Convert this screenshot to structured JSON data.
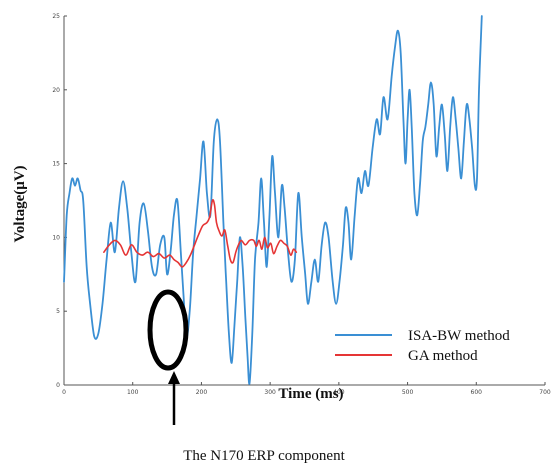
{
  "chart_data": {
    "type": "line",
    "xlabel": "Time (ms)",
    "ylabel": "Voltage(μV)",
    "xlim": [
      0,
      700
    ],
    "ylim": [
      0,
      25
    ],
    "x_ticks": [
      "0",
      "100",
      "200",
      "300",
      "400",
      "500",
      "600",
      "700"
    ],
    "y_ticks": [
      "0",
      "5",
      "10",
      "15",
      "20",
      "25"
    ],
    "grid": false,
    "legend_position": "bottom-right",
    "colors": {
      "isa": "#3a8fd4",
      "ga": "#e53535",
      "axis": "#555555",
      "annotation": "#000000"
    },
    "series": [
      {
        "name": "ISA-BW method",
        "color_key": "isa",
        "points": [
          [
            0,
            7
          ],
          [
            4,
            11.5
          ],
          [
            8,
            13
          ],
          [
            12,
            14
          ],
          [
            16,
            13.5
          ],
          [
            20,
            14
          ],
          [
            24,
            13.2
          ],
          [
            28,
            12.5
          ],
          [
            33,
            8
          ],
          [
            38,
            5.5
          ],
          [
            44,
            3.3
          ],
          [
            50,
            3.5
          ],
          [
            56,
            5.5
          ],
          [
            62,
            8.5
          ],
          [
            68,
            11
          ],
          [
            74,
            9
          ],
          [
            80,
            12
          ],
          [
            86,
            13.8
          ],
          [
            92,
            12
          ],
          [
            98,
            9
          ],
          [
            104,
            7
          ],
          [
            110,
            11
          ],
          [
            116,
            12.3
          ],
          [
            122,
            10.5
          ],
          [
            128,
            8
          ],
          [
            134,
            7.5
          ],
          [
            140,
            9.5
          ],
          [
            146,
            10
          ],
          [
            150,
            7.5
          ],
          [
            155,
            9
          ],
          [
            160,
            11.5
          ],
          [
            165,
            12.5
          ],
          [
            170,
            9
          ],
          [
            174,
            6
          ],
          [
            178,
            3.2
          ],
          [
            183,
            5
          ],
          [
            188,
            9
          ],
          [
            193,
            11.5
          ],
          [
            198,
            14
          ],
          [
            203,
            16.5
          ],
          [
            208,
            13
          ],
          [
            213,
            11.5
          ],
          [
            218,
            16.5
          ],
          [
            223,
            18
          ],
          [
            227,
            16.5
          ],
          [
            232,
            11
          ],
          [
            236,
            7
          ],
          [
            240,
            3.5
          ],
          [
            244,
            1.5
          ],
          [
            248,
            4
          ],
          [
            252,
            7
          ],
          [
            256,
            10
          ],
          [
            260,
            8
          ],
          [
            264,
            4.5
          ],
          [
            267,
            2
          ],
          [
            270,
            0.1
          ],
          [
            274,
            3.5
          ],
          [
            278,
            8.5
          ],
          [
            283,
            11
          ],
          [
            287,
            14
          ],
          [
            291,
            11
          ],
          [
            295,
            8
          ],
          [
            299,
            11.5
          ],
          [
            303,
            15.5
          ],
          [
            307,
            13
          ],
          [
            312,
            10
          ],
          [
            317,
            13.5
          ],
          [
            321,
            12
          ],
          [
            326,
            9
          ],
          [
            331,
            7
          ],
          [
            336,
            8.5
          ],
          [
            341,
            13
          ],
          [
            346,
            10
          ],
          [
            351,
            7.5
          ],
          [
            355,
            5.5
          ],
          [
            360,
            7
          ],
          [
            365,
            8.5
          ],
          [
            370,
            7
          ],
          [
            375,
            9.5
          ],
          [
            380,
            11
          ],
          [
            385,
            10
          ],
          [
            391,
            7
          ],
          [
            396,
            5.5
          ],
          [
            401,
            7
          ],
          [
            406,
            9.5
          ],
          [
            410,
            12
          ],
          [
            414,
            11
          ],
          [
            418,
            8.5
          ],
          [
            423,
            11.5
          ],
          [
            428,
            14
          ],
          [
            433,
            13
          ],
          [
            438,
            14.5
          ],
          [
            443,
            13.5
          ],
          [
            449,
            16
          ],
          [
            455,
            18
          ],
          [
            460,
            17
          ],
          [
            465,
            19.5
          ],
          [
            471,
            18
          ],
          [
            477,
            21
          ],
          [
            482,
            23
          ],
          [
            486,
            24
          ],
          [
            490,
            22.5
          ],
          [
            494,
            18
          ],
          [
            497,
            15
          ],
          [
            500,
            18
          ],
          [
            503,
            20
          ],
          [
            506,
            17.5
          ],
          [
            510,
            13
          ],
          [
            514,
            11.5
          ],
          [
            518,
            13.5
          ],
          [
            522,
            16.5
          ],
          [
            526,
            17.5
          ],
          [
            530,
            19
          ],
          [
            534,
            20.5
          ],
          [
            538,
            19
          ],
          [
            542,
            15.5
          ],
          [
            546,
            17.5
          ],
          [
            550,
            19
          ],
          [
            554,
            17
          ],
          [
            558,
            14.5
          ],
          [
            562,
            17.5
          ],
          [
            566,
            19.5
          ],
          [
            570,
            18
          ],
          [
            574,
            16
          ],
          [
            578,
            14
          ],
          [
            582,
            16.5
          ],
          [
            586,
            19
          ],
          [
            590,
            18
          ],
          [
            594,
            16
          ],
          [
            598,
            13.5
          ],
          [
            601,
            14
          ],
          [
            604,
            20
          ],
          [
            608,
            25
          ]
        ]
      },
      {
        "name": "GA method",
        "color_key": "ga",
        "points": [
          [
            58,
            9
          ],
          [
            66,
            9.5
          ],
          [
            74,
            9.8
          ],
          [
            82,
            9.5
          ],
          [
            90,
            8.8
          ],
          [
            98,
            9.5
          ],
          [
            106,
            9
          ],
          [
            114,
            8.8
          ],
          [
            122,
            9
          ],
          [
            130,
            8.7
          ],
          [
            138,
            8.9
          ],
          [
            146,
            8.6
          ],
          [
            154,
            8.8
          ],
          [
            160,
            8.5
          ],
          [
            166,
            8.3
          ],
          [
            172,
            8
          ],
          [
            178,
            8.3
          ],
          [
            184,
            8.8
          ],
          [
            190,
            9.5
          ],
          [
            196,
            10.2
          ],
          [
            202,
            10.8
          ],
          [
            208,
            11
          ],
          [
            212,
            11.4
          ],
          [
            216,
            12.5
          ],
          [
            219,
            12.2
          ],
          [
            222,
            11
          ],
          [
            226,
            10.4
          ],
          [
            230,
            10.1
          ],
          [
            234,
            10.5
          ],
          [
            238,
            9.5
          ],
          [
            242,
            8.5
          ],
          [
            246,
            8.3
          ],
          [
            250,
            9
          ],
          [
            254,
            9.5
          ],
          [
            258,
            9.8
          ],
          [
            264,
            9.5
          ],
          [
            270,
            9.8
          ],
          [
            276,
            9.8
          ],
          [
            280,
            9.4
          ],
          [
            284,
            9.8
          ],
          [
            288,
            9.2
          ],
          [
            292,
            10
          ],
          [
            296,
            9.3
          ],
          [
            301,
            9.6
          ],
          [
            305,
            8.9
          ],
          [
            310,
            9.4
          ],
          [
            315,
            9.8
          ],
          [
            320,
            9.6
          ],
          [
            325,
            9.4
          ],
          [
            330,
            8.8
          ],
          [
            334,
            9.2
          ],
          [
            338,
            9
          ]
        ]
      }
    ],
    "annotation": {
      "label": "The N170 ERP component",
      "target": [
        175,
        3
      ]
    }
  }
}
